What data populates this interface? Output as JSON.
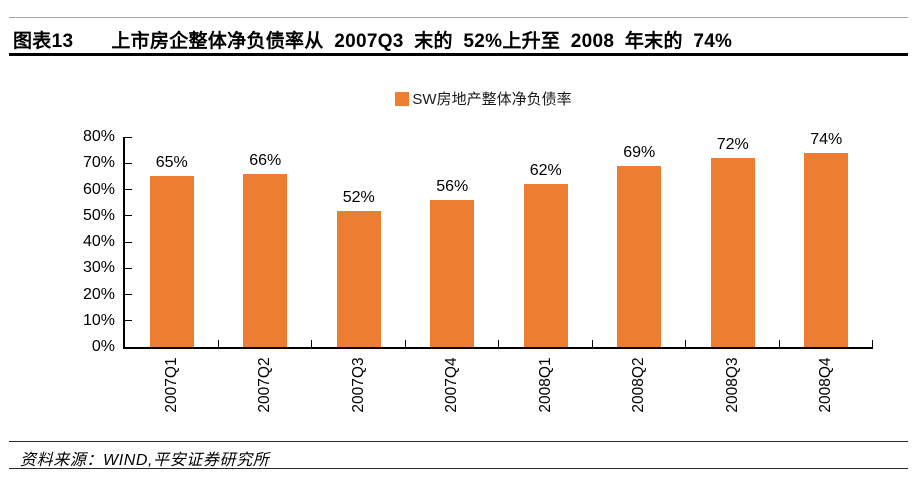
{
  "header": {
    "tag": "图表13",
    "title": "上市房企整体净负债率从 2007Q3 末的 52%上升至 2008 年末的 74%"
  },
  "legend": {
    "label": "SW房地产整体净负债率",
    "color": "#ED7D31"
  },
  "chart_data": {
    "type": "bar",
    "title": "SW房地产整体净负债率",
    "categories": [
      "2007Q1",
      "2007Q2",
      "2007Q3",
      "2007Q4",
      "2008Q1",
      "2008Q2",
      "2008Q3",
      "2008Q4"
    ],
    "values": [
      65,
      66,
      52,
      56,
      62,
      69,
      72,
      74
    ],
    "value_labels": [
      "65%",
      "66%",
      "52%",
      "56%",
      "62%",
      "69%",
      "72%",
      "74%"
    ],
    "unit": "%",
    "xlabel": "",
    "ylabel": "",
    "ylim": [
      0,
      80
    ],
    "ytick_step": 10,
    "ytick_labels": [
      "0%",
      "10%",
      "20%",
      "30%",
      "40%",
      "50%",
      "60%",
      "70%",
      "80%"
    ],
    "bar_color": "#ED7D31",
    "grid": false,
    "legend_position": "top-center"
  },
  "footer": {
    "source": "资料来源：WIND,平安证券研究所"
  }
}
